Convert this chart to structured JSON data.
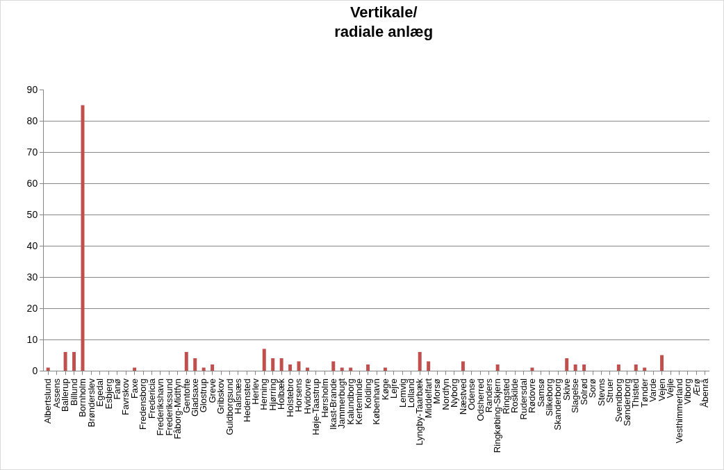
{
  "chart_data": {
    "type": "bar",
    "title": "Vertikale/\nradiale anlæg",
    "categories": [
      "Albertslund",
      "Assens",
      "Ballerup",
      "Billund",
      "Bornholm",
      "Brønderslev",
      "Egedal",
      "Esbjerg",
      "Fanø",
      "Favrskov",
      "Faxe",
      "Fredensborg",
      "Fredericia",
      "Frederikshavn",
      "Frederikssund",
      "Fåborg-Midtfyn",
      "Gentofte",
      "Gladsaxe",
      "Glostrup",
      "Greve",
      "Gribskov",
      "Guldborgsund",
      "Halsnæs",
      "Hedensted",
      "Herlev",
      "Herning",
      "Hjørring",
      "Holbæk",
      "Holstebro",
      "Horsens",
      "Hvidovre",
      "Høje-Taastrup",
      "Hørsholm",
      "Ikast-Brande",
      "Jammerbugt",
      "Kalundborg",
      "Kerteminde",
      "Kolding",
      "København",
      "Køge",
      "Lejre",
      "Lemvig",
      "Lolland",
      "Lyngby-Taarbæk",
      "Middelfart",
      "Morsø",
      "Nordfyn",
      "Nyborg",
      "Næstved",
      "Odense",
      "Odsherred",
      "Randers",
      "Ringkøbing-Skjern",
      "Ringsted",
      "Roskilde",
      "Rudersdal",
      "Rødovre",
      "Samsø",
      "Silkeborg",
      "Skanderborg",
      "Skive",
      "Slagelse",
      "Solrød",
      "Sorø",
      "Stevns",
      "Struer",
      "Svendborg",
      "Sønderborg",
      "Thisted",
      "Tønder",
      "Varde",
      "Vejen",
      "Vejle",
      "Vesthimmerland",
      "Viborg",
      "Ærø",
      "Åbenrå"
    ],
    "values": [
      1,
      0,
      6,
      6,
      85,
      0,
      0,
      0,
      0,
      0,
      1,
      0,
      0,
      0,
      0,
      0,
      6,
      4,
      1,
      2,
      0,
      0,
      0,
      0,
      0,
      7,
      4,
      4,
      2,
      3,
      1,
      0,
      0,
      3,
      1,
      1,
      0,
      2,
      0,
      1,
      0,
      0,
      0,
      6,
      3,
      0,
      0,
      0,
      3,
      0,
      0,
      0,
      2,
      0,
      0,
      0,
      1,
      0,
      0,
      0,
      4,
      2,
      2,
      0,
      0,
      0,
      2,
      0,
      2,
      1,
      0,
      5,
      0,
      0,
      0,
      0,
      0
    ],
    "color": "#c0504d",
    "ylim": [
      0,
      90
    ],
    "yticks": [
      0,
      10,
      20,
      30,
      40,
      50,
      60,
      70,
      80,
      90
    ],
    "grid": "y"
  }
}
